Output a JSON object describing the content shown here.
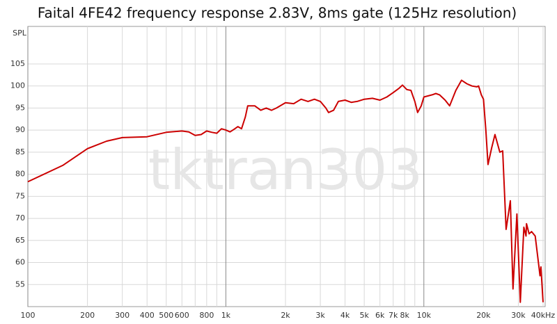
{
  "chart_data": {
    "type": "line",
    "title": "Faital 4FE42 frequency response 2.83V, 8ms gate (125Hz resolution)",
    "y_label": "SPL",
    "watermark": "tktran303",
    "color": "#cc0000",
    "x_log": true,
    "grid": true,
    "x": [
      100,
      150,
      200,
      250,
      300,
      400,
      500,
      600,
      650,
      700,
      750,
      800,
      850,
      900,
      950,
      1000,
      1050,
      1100,
      1150,
      1200,
      1255,
      1290,
      1400,
      1500,
      1600,
      1700,
      1800,
      2000,
      2200,
      2400,
      2600,
      2800,
      3000,
      3200,
      3300,
      3500,
      3700,
      4000,
      4300,
      4600,
      5000,
      5500,
      6000,
      6500,
      7000,
      7500,
      7800,
      8200,
      8600,
      9000,
      9300,
      9700,
      10000,
      11000,
      11500,
      12000,
      12800,
      13500,
      14500,
      15500,
      16500,
      17500,
      18500,
      18900,
      19500,
      20000,
      20560,
      21080,
      22000,
      22860,
      24200,
      25000,
      26030,
      27330,
      28200,
      29500,
      30700,
      32000,
      32800,
      33000,
      34000,
      35000,
      36500,
      38000,
      38600,
      39000,
      40000
    ],
    "values": [
      78.3,
      82,
      85.8,
      87.5,
      88.3,
      88.5,
      89.5,
      89.8,
      89.6,
      88.8,
      89,
      89.8,
      89.5,
      89.3,
      90.3,
      90,
      89.6,
      90.2,
      90.8,
      90.3,
      93,
      95.5,
      95.5,
      94.5,
      95,
      94.5,
      95,
      96.2,
      96,
      97,
      96.5,
      97,
      96.5,
      95,
      94,
      94.5,
      96.5,
      96.8,
      96.3,
      96.5,
      97,
      97.2,
      96.8,
      97.5,
      98.5,
      99.5,
      100.2,
      99.2,
      99,
      96.5,
      94,
      95.5,
      97.5,
      98,
      98.3,
      98,
      96.8,
      95.5,
      99,
      101.3,
      100.5,
      100,
      99.8,
      100,
      98,
      97,
      90,
      82.2,
      86,
      89,
      85,
      85.3,
      67.5,
      74,
      54,
      71,
      51,
      68,
      66,
      68.8,
      66.5,
      67,
      66,
      59.5,
      57,
      59,
      51
    ],
    "xlim": [
      100,
      40000
    ],
    "ylim": [
      50,
      113.5
    ],
    "xticks": [
      100,
      200,
      300,
      400,
      500,
      600,
      800,
      {
        "value": 1000,
        "label": "1k"
      },
      {
        "value": 2000,
        "label": "2k"
      },
      {
        "value": 3000,
        "label": "3k"
      },
      {
        "value": 4000,
        "label": "4k"
      },
      {
        "value": 5000,
        "label": "5k"
      },
      {
        "value": 6000,
        "label": "6k"
      },
      {
        "value": 7000,
        "label": "7k"
      },
      {
        "value": 8000,
        "label": "8k"
      },
      {
        "value": 10000,
        "label": "10k"
      },
      {
        "value": 20000,
        "label": "20k"
      },
      {
        "value": 30000,
        "label": "30k"
      },
      {
        "value": 40000,
        "label": "40kHz"
      }
    ],
    "xgrid_minor": [
      700,
      900,
      9000
    ],
    "yticks": [
      55,
      60,
      65,
      70,
      75,
      80,
      85,
      90,
      95,
      100,
      105
    ]
  }
}
